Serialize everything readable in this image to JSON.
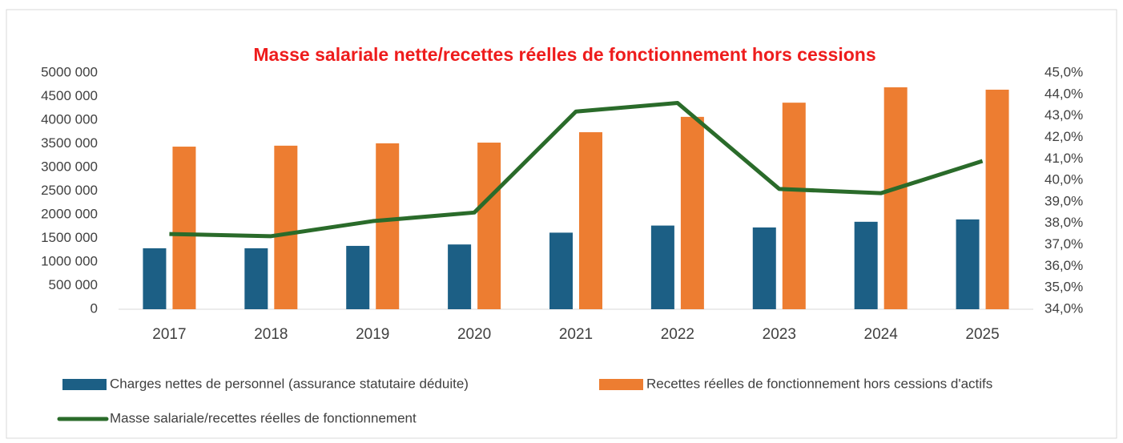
{
  "chart_data": {
    "type": "bar_line",
    "title": "Masse salariale nette/recettes réelles de fonctionnement hors cessions",
    "categories": [
      "2017",
      "2018",
      "2019",
      "2020",
      "2021",
      "2022",
      "2023",
      "2024",
      "2025"
    ],
    "series": [
      {
        "name": "Charges nettes de personnel (assurance statutaire déduite)",
        "type": "bar",
        "color": "#1c5f85",
        "values": [
          1290000,
          1290000,
          1340000,
          1370000,
          1620000,
          1770000,
          1730000,
          1850000,
          1900000
        ]
      },
      {
        "name": "Recettes réelles de fonctionnement hors cessions d'actifs",
        "type": "bar",
        "color": "#ed7d31",
        "values": [
          3440000,
          3460000,
          3510000,
          3525000,
          3745000,
          4070000,
          4370000,
          4695000,
          4645000
        ]
      },
      {
        "name": "Masse salariale/recettes réelles de fonctionnement",
        "type": "line",
        "axis": "y2",
        "color": "#2a6b2a",
        "values": [
          37.5,
          37.4,
          38.1,
          38.5,
          43.2,
          43.6,
          39.6,
          39.4,
          40.9
        ]
      }
    ],
    "ylim": [
      0,
      5000000
    ],
    "yticks": [
      {
        "value": 0,
        "label": "0"
      },
      {
        "value": 500000,
        "label": "500 000"
      },
      {
        "value": 1000000,
        "label": "1000 000"
      },
      {
        "value": 1500000,
        "label": "1500 000"
      },
      {
        "value": 2000000,
        "label": "2000 000"
      },
      {
        "value": 2500000,
        "label": "2500 000"
      },
      {
        "value": 3000000,
        "label": "3000 000"
      },
      {
        "value": 3500000,
        "label": "3500 000"
      },
      {
        "value": 4000000,
        "label": "4000 000"
      },
      {
        "value": 4500000,
        "label": "4500 000"
      },
      {
        "value": 5000000,
        "label": "5000 000"
      }
    ],
    "y2lim": [
      34,
      45
    ],
    "y2ticks": [
      {
        "value": 34,
        "label": "34,0%"
      },
      {
        "value": 35,
        "label": "35,0%"
      },
      {
        "value": 36,
        "label": "36,0%"
      },
      {
        "value": 37,
        "label": "37,0%"
      },
      {
        "value": 38,
        "label": "38,0%"
      },
      {
        "value": 39,
        "label": "39,0%"
      },
      {
        "value": 40,
        "label": "40,0%"
      },
      {
        "value": 41,
        "label": "41,0%"
      },
      {
        "value": 42,
        "label": "42,0%"
      },
      {
        "value": 43,
        "label": "43,0%"
      },
      {
        "value": 44,
        "label": "44,0%"
      },
      {
        "value": 45,
        "label": "45,0%"
      }
    ],
    "grid": false,
    "legend": "bottom"
  }
}
